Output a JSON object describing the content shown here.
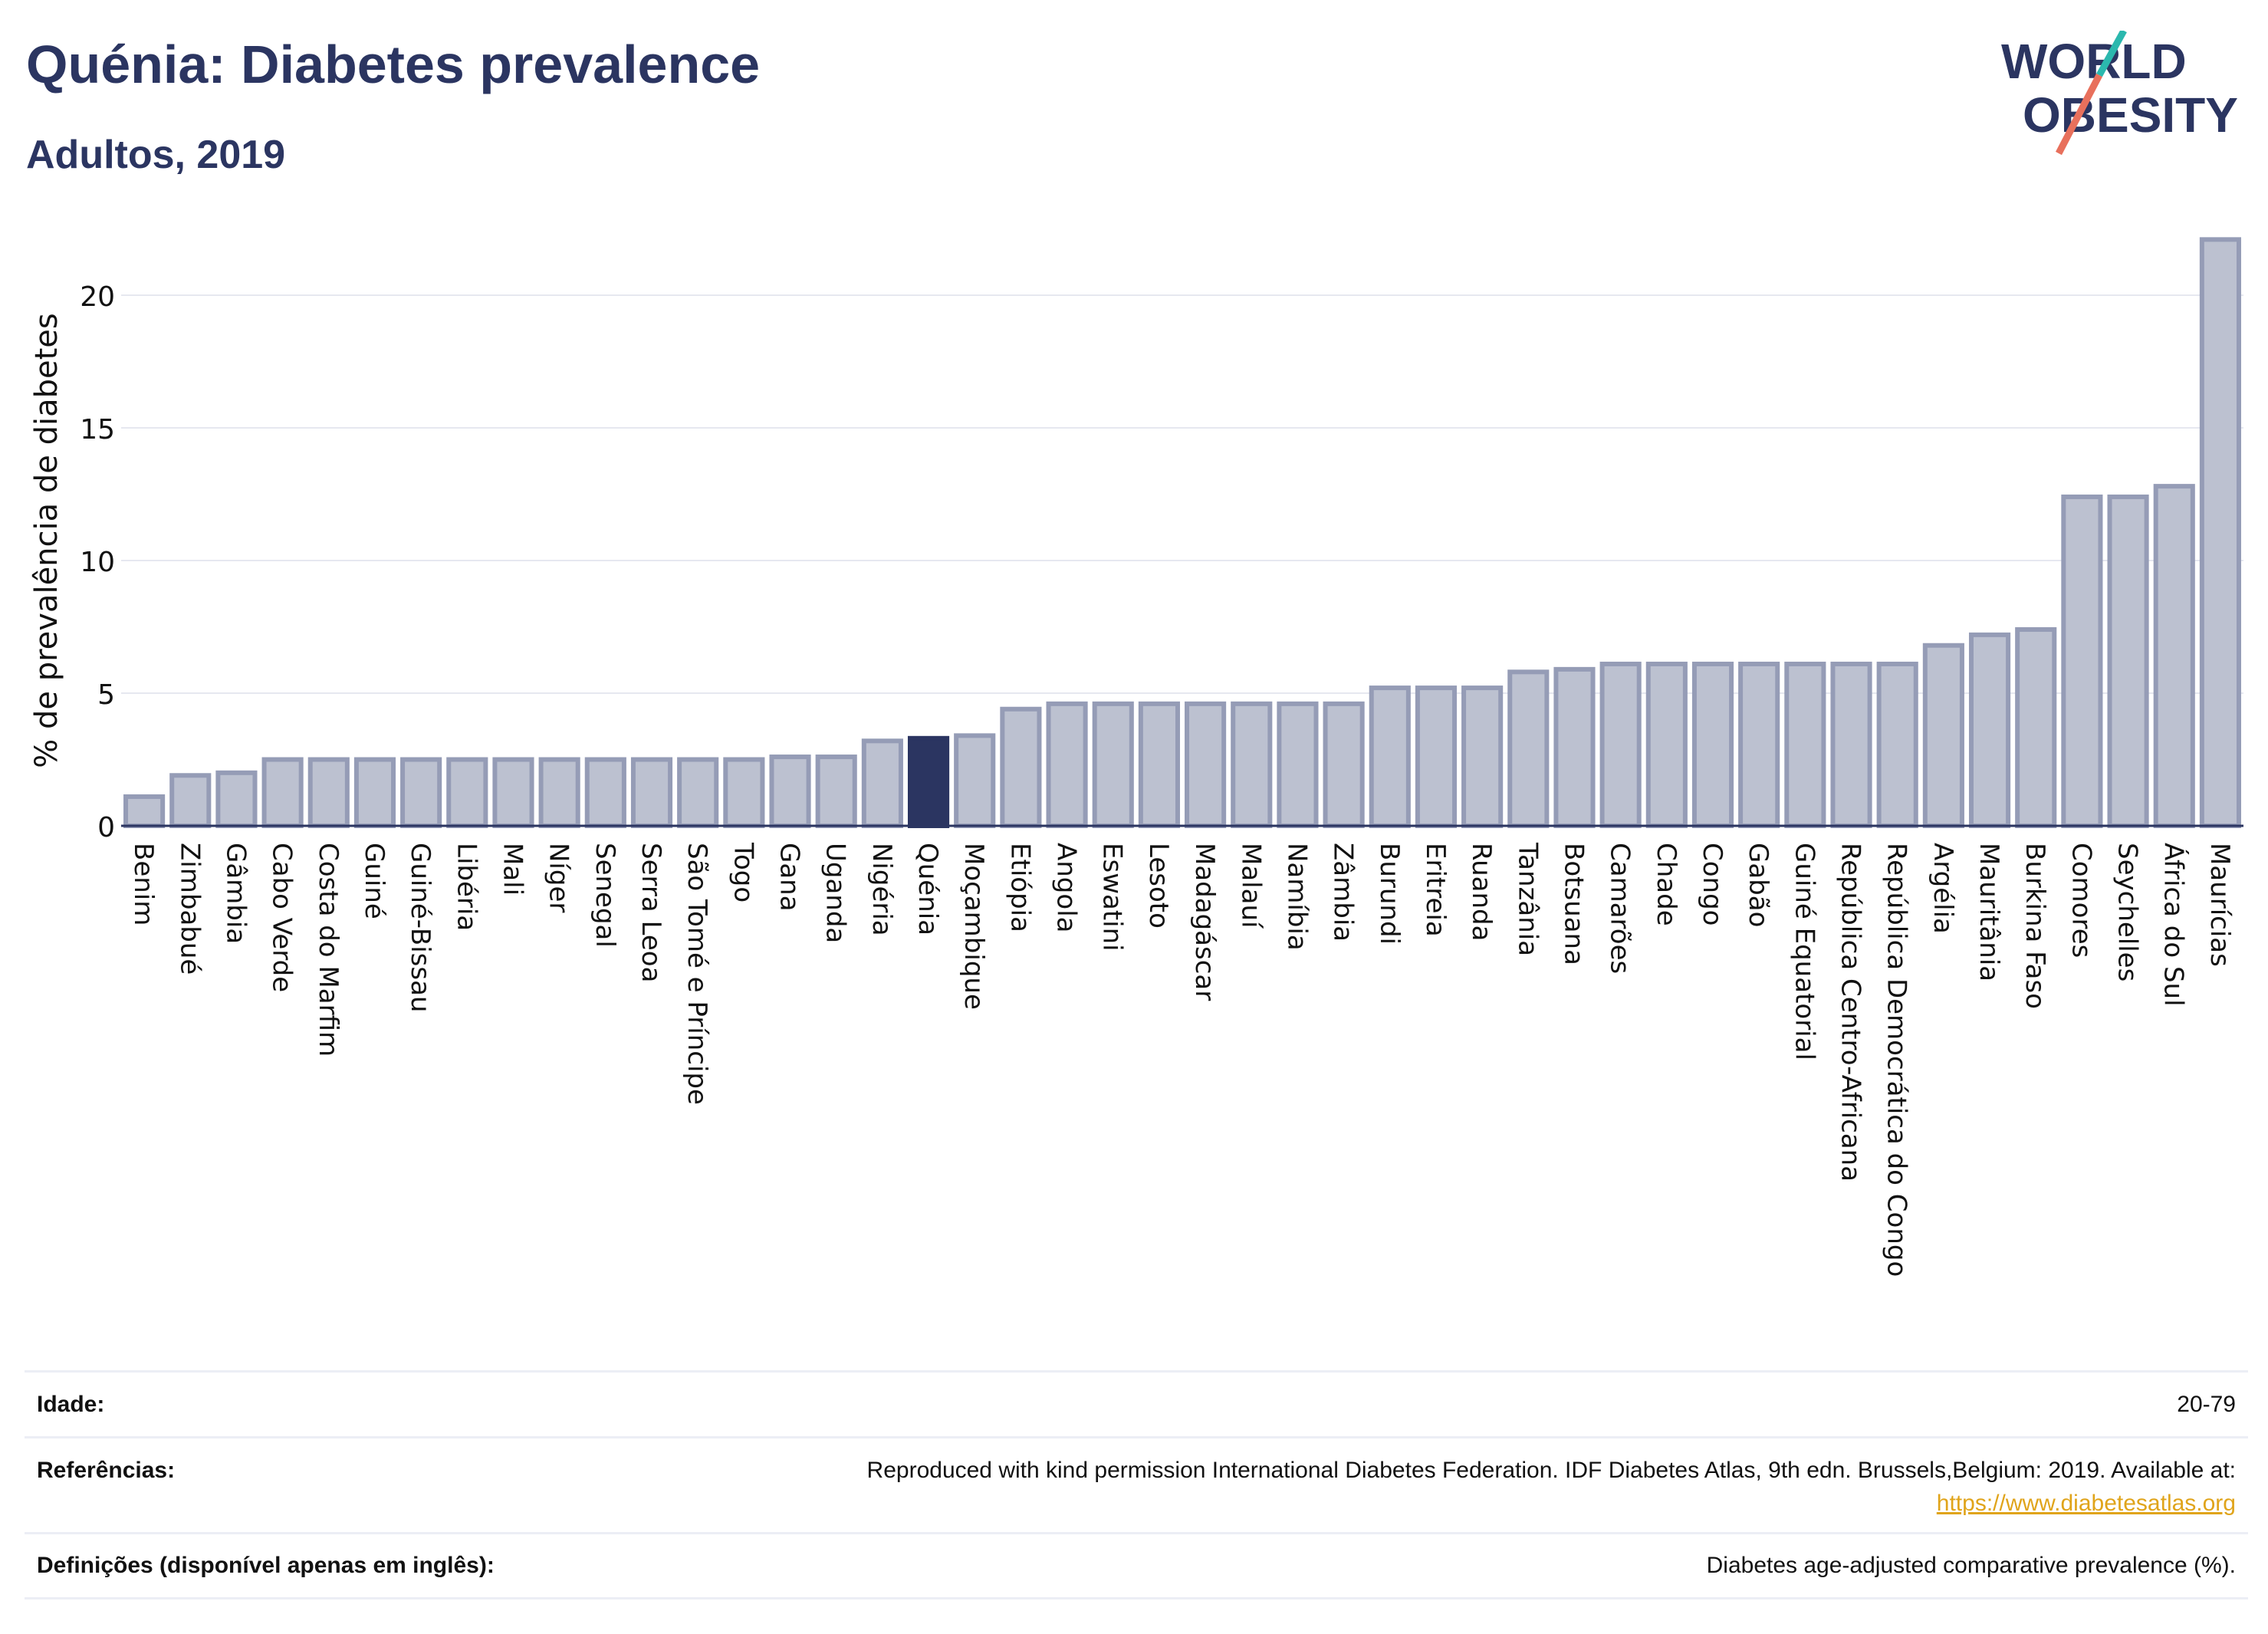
{
  "header": {
    "title": "Quénia: Diabetes prevalence",
    "subtitle": "Adultos, 2019"
  },
  "logo": {
    "line1": "WORLD",
    "line2": "OBESITY"
  },
  "colors": {
    "bar": "#bcc1d0",
    "bar_stroke": "#959cb6",
    "highlight": "#2b3561",
    "axis": "#2b3561",
    "grid": "#e6e8f0",
    "logo_teal": "#2bb8ae",
    "logo_coral": "#e8705c"
  },
  "chart_data": {
    "type": "bar",
    "title": "Quénia: Diabetes prevalence",
    "subtitle": "Adultos, 2019",
    "xlabel": "",
    "ylabel": "% de prevalência de diabetes",
    "ylim": [
      0,
      22.5
    ],
    "yticks": [
      0,
      5,
      10,
      15,
      20
    ],
    "grid": true,
    "highlight": "Quénia",
    "categories": [
      "Benim",
      "Zimbabué",
      "Gâmbia",
      "Cabo Verde",
      "Costa do Marfim",
      "Guiné",
      "Guiné-Bissau",
      "Libéria",
      "Mali",
      "Níger",
      "Senegal",
      "Serra Leoa",
      "São Tomé e Príncipe",
      "Togo",
      "Gana",
      "Uganda",
      "Nigéria",
      "Quénia",
      "Moçambique",
      "Etiópia",
      "Angola",
      "Eswatini",
      "Lesoto",
      "Madagáscar",
      "Malauí",
      "Namíbia",
      "Zâmbia",
      "Burundi",
      "Eritreia",
      "Ruanda",
      "Tanzânia",
      "Botsuana",
      "Camarões",
      "Chade",
      "Congo",
      "Gabão",
      "Guiné Equatorial",
      "República Centro-Africana",
      "República Democrática do Congo",
      "Argélia",
      "Mauritânia",
      "Burkina Faso",
      "Comores",
      "Seychelles",
      "África do Sul",
      "Maurícias"
    ],
    "values": [
      1.1,
      1.9,
      2.0,
      2.5,
      2.5,
      2.5,
      2.5,
      2.5,
      2.5,
      2.5,
      2.5,
      2.5,
      2.5,
      2.5,
      2.6,
      2.6,
      3.2,
      3.3,
      3.4,
      4.4,
      4.6,
      4.6,
      4.6,
      4.6,
      4.6,
      4.6,
      4.6,
      5.2,
      5.2,
      5.2,
      5.8,
      5.9,
      6.1,
      6.1,
      6.1,
      6.1,
      6.1,
      6.1,
      6.1,
      6.8,
      7.2,
      7.4,
      12.4,
      12.4,
      12.8,
      22.1
    ]
  },
  "footer": {
    "rows": [
      {
        "label": "Idade:",
        "value": "20-79"
      },
      {
        "label": "Referências:",
        "value": "Reproduced with kind permission International Diabetes Federation. IDF Diabetes Atlas, 9th edn. Brussels,Belgium: 2019. Available at:",
        "link": "https://www.diabetesatlas.org"
      },
      {
        "label": "Definições (disponível apenas em inglês):",
        "value": "Diabetes age-adjusted comparative prevalence (%)."
      }
    ]
  }
}
